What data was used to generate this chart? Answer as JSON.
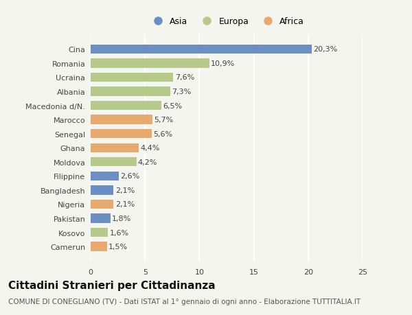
{
  "categories": [
    "Camerun",
    "Kosovo",
    "Pakistan",
    "Nigeria",
    "Bangladesh",
    "Filippine",
    "Moldova",
    "Ghana",
    "Senegal",
    "Marocco",
    "Macedonia d/N.",
    "Albania",
    "Ucraina",
    "Romania",
    "Cina"
  ],
  "values": [
    1.5,
    1.6,
    1.8,
    2.1,
    2.1,
    2.6,
    4.2,
    4.4,
    5.6,
    5.7,
    6.5,
    7.3,
    7.6,
    10.9,
    20.3
  ],
  "labels": [
    "1,5%",
    "1,6%",
    "1,8%",
    "2,1%",
    "2,1%",
    "2,6%",
    "4,2%",
    "4,4%",
    "5,6%",
    "5,7%",
    "6,5%",
    "7,3%",
    "7,6%",
    "10,9%",
    "20,3%"
  ],
  "colors": [
    "#e8a96e",
    "#b5c98a",
    "#6b8fc2",
    "#e8a96e",
    "#6b8fc2",
    "#6b8fc2",
    "#b5c98a",
    "#e8a96e",
    "#e8a96e",
    "#e8a96e",
    "#b5c98a",
    "#b5c98a",
    "#b5c98a",
    "#b5c98a",
    "#6b8fc2"
  ],
  "continent": [
    "Africa",
    "Europa",
    "Asia",
    "Africa",
    "Asia",
    "Asia",
    "Europa",
    "Africa",
    "Africa",
    "Africa",
    "Europa",
    "Europa",
    "Europa",
    "Europa",
    "Asia"
  ],
  "legend_labels": [
    "Asia",
    "Europa",
    "Africa"
  ],
  "legend_colors": [
    "#6b8fc2",
    "#b5c98a",
    "#e8a96e"
  ],
  "title": "Cittadini Stranieri per Cittadinanza",
  "subtitle": "COMUNE DI CONEGLIANO (TV) - Dati ISTAT al 1° gennaio di ogni anno - Elaborazione TUTTITALIA.IT",
  "xlim": [
    0,
    25
  ],
  "xticks": [
    0,
    5,
    10,
    15,
    20,
    25
  ],
  "background_color": "#f5f5f0",
  "grid_color": "#ffffff",
  "title_fontsize": 11,
  "subtitle_fontsize": 7.5,
  "label_fontsize": 8,
  "tick_fontsize": 8,
  "legend_fontsize": 9
}
